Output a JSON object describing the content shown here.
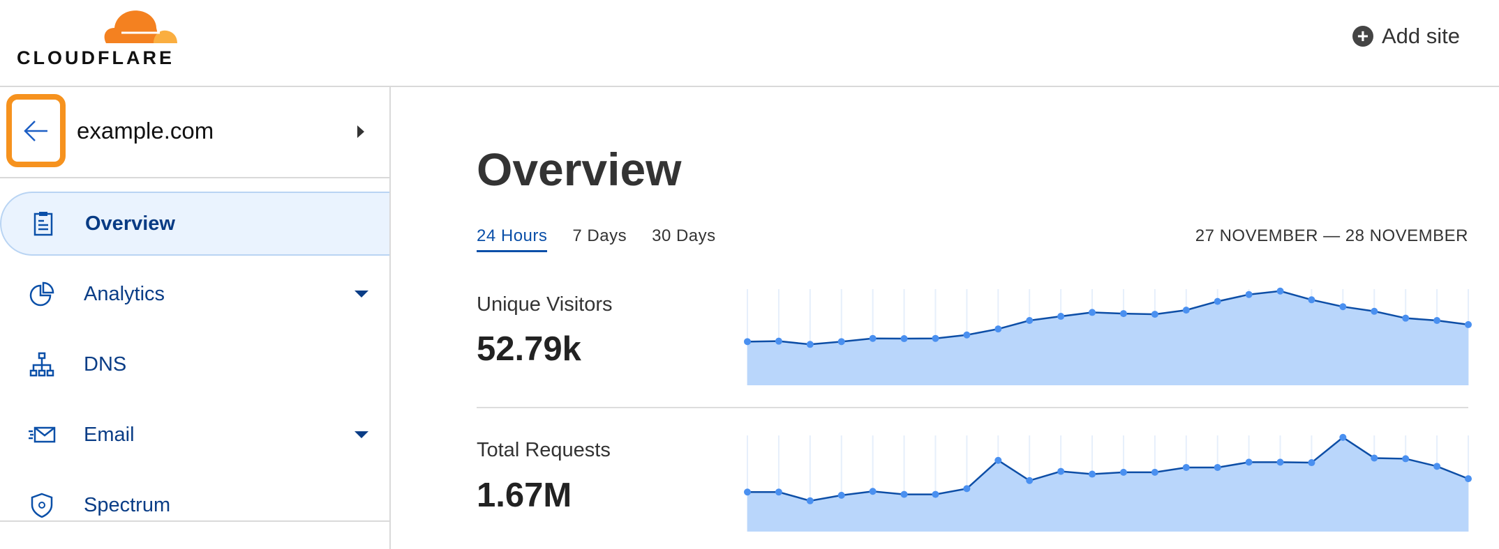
{
  "header": {
    "logo_text": "CLOUDFLARE",
    "add_site_label": "Add site",
    "icons": {
      "add": "plus-circle-icon"
    }
  },
  "sidebar": {
    "domain": "example.com",
    "items": [
      {
        "label": "Overview",
        "icon": "clipboard-icon",
        "active": true,
        "has_dropdown": false
      },
      {
        "label": "Analytics",
        "icon": "pie-chart-icon",
        "active": false,
        "has_dropdown": true
      },
      {
        "label": "DNS",
        "icon": "network-icon",
        "active": false,
        "has_dropdown": false
      },
      {
        "label": "Email",
        "icon": "email-icon",
        "active": false,
        "has_dropdown": true
      },
      {
        "label": "Spectrum",
        "icon": "shield-icon",
        "active": false,
        "has_dropdown": false
      }
    ]
  },
  "main": {
    "title": "Overview",
    "tabs": [
      {
        "label": "24 Hours",
        "active": true
      },
      {
        "label": "7 Days",
        "active": false
      },
      {
        "label": "30 Days",
        "active": false
      }
    ],
    "date_range": "27 NOVEMBER — 28 NOVEMBER",
    "metrics": [
      {
        "label": "Unique Visitors",
        "value": "52.79k"
      },
      {
        "label": "Total Requests",
        "value": "1.67M"
      }
    ]
  },
  "colors": {
    "accent": "#0a4fa8",
    "highlight": "#f6921e",
    "area_fill": "#b9d6fb",
    "line": "#0d4ea6",
    "point": "#4a90f0"
  },
  "chart_data": [
    {
      "type": "area",
      "values": [
        190,
        192,
        178,
        190,
        204,
        203,
        204,
        219,
        245,
        282,
        300,
        317,
        312,
        309,
        327,
        365,
        395,
        410,
        372,
        342,
        322,
        292,
        282,
        264
      ],
      "grid": "vertical"
    },
    {
      "type": "area",
      "values": [
        172,
        172,
        134,
        158,
        175,
        162,
        162,
        187,
        310,
        222,
        262,
        250,
        258,
        258,
        279,
        279,
        302,
        302,
        300,
        410,
        320,
        317,
        284,
        230
      ],
      "grid": "vertical"
    }
  ]
}
